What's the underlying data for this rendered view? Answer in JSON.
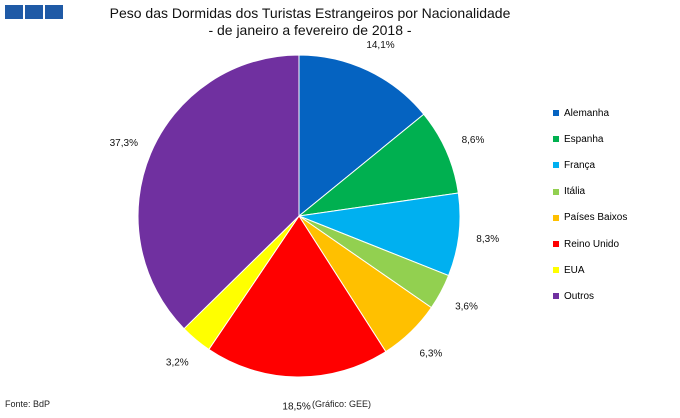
{
  "chart_data": {
    "type": "pie",
    "title": "Peso das Dormidas dos Turistas Estrangeiros por Nacionalidade",
    "subtitle": "- de janeiro a fevereiro de 2018 -",
    "slices": [
      {
        "name": "Alemanha",
        "value": 14.1,
        "label": "14,1%",
        "color": "#0563C1"
      },
      {
        "name": "Espanha",
        "value": 8.6,
        "label": "8,6%",
        "color": "#00B050"
      },
      {
        "name": "França",
        "value": 8.3,
        "label": "8,3%",
        "color": "#00B0F0"
      },
      {
        "name": "Itália",
        "value": 3.6,
        "label": "3,6%",
        "color": "#92D050"
      },
      {
        "name": "Países Baixos",
        "value": 6.3,
        "label": "6,3%",
        "color": "#FFC000"
      },
      {
        "name": "Reino Unido",
        "value": 18.5,
        "label": "18,5%",
        "color": "#FF0000"
      },
      {
        "name": "EUA",
        "value": 3.2,
        "label": "3,2%",
        "color": "#FFFF00"
      },
      {
        "name": "Outros",
        "value": 37.3,
        "label": "37,3%",
        "color": "#7030A0"
      }
    ],
    "legend_position": "right",
    "start": "top",
    "direction": "clockwise"
  },
  "footer": {
    "source": "Fonte: BdP",
    "credit": "(Gráfico: GEE)"
  }
}
